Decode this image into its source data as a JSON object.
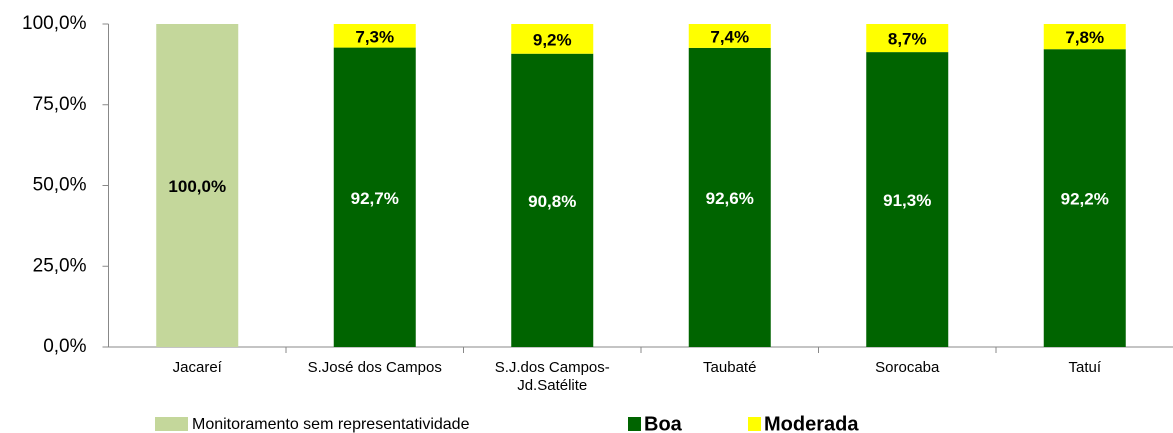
{
  "chart_data": {
    "type": "stacked_bar",
    "categories": [
      "Jacareí",
      "S.José dos Campos",
      "S.J.dos Campos-\nJd.Satélite",
      "Taubaté",
      "Sorocaba",
      "Tatuí"
    ],
    "series": [
      {
        "name": "Monitoramento sem representatividade",
        "color": "#c4d79b",
        "label_color": "#000000",
        "values": [
          100,
          null,
          null,
          null,
          null,
          null
        ],
        "value_labels": [
          "100,0%",
          null,
          null,
          null,
          null,
          null
        ]
      },
      {
        "name": "Boa",
        "color": "#006400",
        "label_color": "#ffffff",
        "values": [
          null,
          92.7,
          90.8,
          92.6,
          91.3,
          92.2
        ],
        "value_labels": [
          null,
          "92,7%",
          "90,8%",
          "92,6%",
          "91,3%",
          "92,2%"
        ]
      },
      {
        "name": "Moderada",
        "color": "#ffff00",
        "label_color": "#000000",
        "values": [
          null,
          7.3,
          9.2,
          7.4,
          8.7,
          7.8
        ],
        "value_labels": [
          null,
          "7,3%",
          "9,2%",
          "7,4%",
          "8,7%",
          "7,8%"
        ]
      }
    ],
    "ylim": [
      0,
      100
    ],
    "yticks": [
      {
        "value": 0,
        "label": "0,0%"
      },
      {
        "value": 25,
        "label": "25,0%"
      },
      {
        "value": 50,
        "label": "50,0%"
      },
      {
        "value": 75,
        "label": "75,0%"
      },
      {
        "value": 100,
        "label": "100,0%"
      }
    ],
    "grid": false,
    "legend": "bottom"
  }
}
